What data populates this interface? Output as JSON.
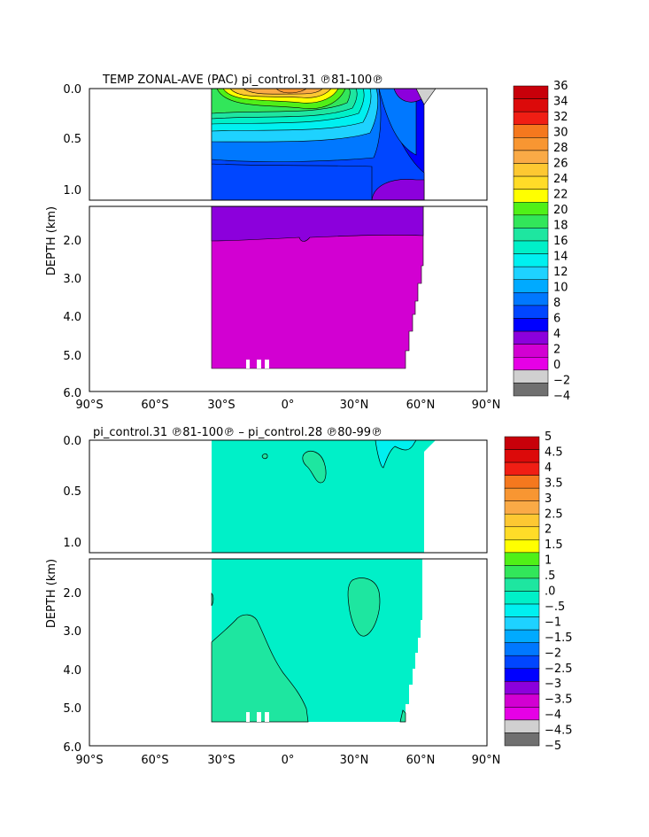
{
  "chart_data": [
    {
      "type": "heatmap",
      "title": "TEMP ZONAL-AVE (PAC) pi_control.31 ℗81-100℗",
      "ylabel": "DEPTH (km)",
      "xlabel": "",
      "x_ticks": [
        "90°S",
        "60°S",
        "30°S",
        "0°",
        "30°N",
        "60°N",
        "90°N"
      ],
      "y_ticks_upper": [
        "0.0",
        "0.5",
        "1.0"
      ],
      "y_ticks_lower": [
        "2.0",
        "3.0",
        "4.0",
        "5.0",
        "6.0"
      ],
      "xlim": [
        -90,
        90
      ],
      "ylim_upper": [
        0,
        1.1
      ],
      "ylim_lower": [
        1.1,
        6.0
      ],
      "data_extent": {
        "lat": [
          -34,
          62
        ],
        "depth_max": 5.4
      },
      "colorbar": {
        "labels": [
          "36",
          "34",
          "32",
          "30",
          "28",
          "26",
          "24",
          "22",
          "20",
          "18",
          "16",
          "14",
          "12",
          "10",
          "8",
          "6",
          "4",
          "2",
          "0",
          "−2",
          "−4"
        ],
        "colors": [
          "#c8000a",
          "#dc0a0a",
          "#f01e14",
          "#f5781e",
          "#f89632",
          "#faaa46",
          "#fdc832",
          "#ffdc28",
          "#ffff00",
          "#50f018",
          "#32e65a",
          "#1ee6a0",
          "#00f0c8",
          "#00f0f0",
          "#1ed2ff",
          "#00aaff",
          "#0078ff",
          "#0046ff",
          "#0000ff",
          "#8c00dc",
          "#d200d2",
          "#e600e6",
          "#d0d0d0",
          "#707070"
        ]
      },
      "fields": {
        "deep_abyss": 1,
        "intermediate": 3,
        "thermocline_levels": [
          5,
          7,
          9,
          11,
          13,
          15,
          17,
          19,
          21,
          23,
          25,
          27
        ],
        "warm_pool_max": 29
      }
    },
    {
      "type": "heatmap",
      "title": "pi_control.31 ℗81-100℗ – pi_control.28 ℗80-99℗",
      "ylabel": "DEPTH (km)",
      "xlabel": "",
      "x_ticks": [
        "90°S",
        "60°S",
        "30°S",
        "0°",
        "30°N",
        "60°N",
        "90°N"
      ],
      "y_ticks_upper": [
        "0.0",
        "0.5",
        "1.0"
      ],
      "y_ticks_lower": [
        "2.0",
        "3.0",
        "4.0",
        "5.0",
        "6.0"
      ],
      "xlim": [
        -90,
        90
      ],
      "ylim_upper": [
        0,
        1.1
      ],
      "ylim_lower": [
        1.1,
        6.0
      ],
      "colorbar": {
        "labels": [
          "5",
          "4.5",
          "4",
          "3.5",
          "3",
          "2.5",
          "2",
          "1.5",
          "1",
          ".5",
          ".0",
          "−.5",
          "−1",
          "−1.5",
          "−2",
          "−2.5",
          "−3",
          "−3.5",
          "−4",
          "−4.5",
          "−5"
        ],
        "colors": [
          "#c8000a",
          "#dc0a0a",
          "#f01e14",
          "#f5781e",
          "#f89632",
          "#faaa46",
          "#fdc832",
          "#ffdc28",
          "#ffff00",
          "#50f018",
          "#32e65a",
          "#1ee6a0",
          "#00f0c8",
          "#00f0f0",
          "#1ed2ff",
          "#00aaff",
          "#0078ff",
          "#0046ff",
          "#0000ff",
          "#8c00dc",
          "#d200d2",
          "#e600e6",
          "#d0d0d0",
          "#707070"
        ]
      },
      "fields": {
        "background": -0.25,
        "positive_regions": 0.25
      }
    }
  ]
}
